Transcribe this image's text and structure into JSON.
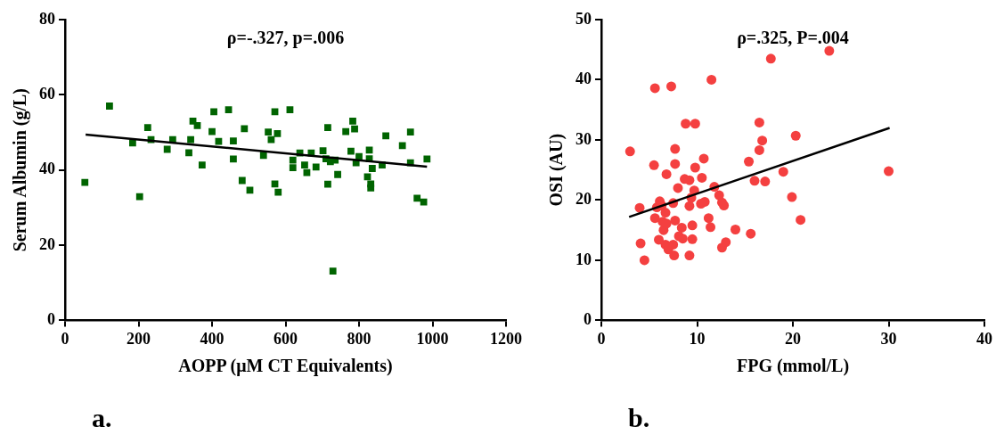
{
  "chart_data": [
    {
      "type": "scatter",
      "title": "ρ=-.327, p=.006",
      "xlabel": "AOPP (μM CT Equivalents)",
      "ylabel": "Serum Albumin (g/L)",
      "annotations": [
        "a."
      ],
      "xlim": [
        0,
        1200
      ],
      "xticks": [
        0,
        200,
        400,
        600,
        800,
        1000,
        1200
      ],
      "ylim": [
        0,
        80
      ],
      "yticks": [
        0,
        20,
        40,
        60,
        80
      ],
      "series": [
        {
          "color": "#006400",
          "marker": "square",
          "x": [
            54,
            121,
            184,
            203,
            225,
            234,
            278,
            293,
            337,
            342,
            348,
            360,
            373,
            400,
            405,
            418,
            445,
            458,
            458,
            482,
            488,
            503,
            540,
            553,
            561,
            571,
            578,
            571,
            580,
            612,
            620,
            620,
            639,
            652,
            658,
            670,
            683,
            702,
            715,
            715,
            710,
            729,
            722,
            735,
            742,
            764,
            778,
            783,
            788,
            792,
            800,
            828,
            828,
            823,
            832,
            832,
            836,
            863,
            873,
            918,
            940,
            940,
            958,
            976,
            985
          ],
          "values": [
            36.7,
            57,
            47.2,
            32.9,
            51.3,
            48.1,
            45.5,
            48.1,
            44.6,
            48.1,
            53,
            51.8,
            41.3,
            50.2,
            55.5,
            47.6,
            56,
            47.7,
            42.9,
            37.2,
            51,
            34.6,
            43.9,
            50.1,
            48.1,
            55.5,
            49.7,
            36.3,
            34.1,
            56,
            42.6,
            40.6,
            44.5,
            41.3,
            39.3,
            44.5,
            40.8,
            45.1,
            51.3,
            36.2,
            43,
            13.1,
            42.2,
            42.6,
            38.8,
            50.2,
            45,
            53,
            50.9,
            41.9,
            43.6,
            45.3,
            43,
            38.2,
            36.3,
            35.2,
            40.4,
            41.3,
            49.1,
            46.5,
            50.1,
            41.9,
            32.5,
            31.5,
            42.9
          ]
        },
        {
          "type": "line",
          "marker": "none",
          "color": "#000000",
          "x": [
            56,
            985
          ],
          "values": [
            49.4,
            40.9
          ]
        }
      ]
    },
    {
      "type": "scatter",
      "title": "ρ=.325, P=.004",
      "xlabel": "FPG (mmol/L)",
      "ylabel": "OSI (AU)",
      "annotations": [
        "b."
      ],
      "xlim": [
        0,
        40
      ],
      "xticks": [
        0,
        10,
        20,
        30,
        40
      ],
      "ylim": [
        0,
        50
      ],
      "yticks": [
        0,
        10,
        20,
        30,
        40,
        50
      ],
      "series": [
        {
          "color": "#f44040",
          "marker": "circle",
          "x": [
            3.0,
            4.0,
            4.1,
            4.5,
            5.5,
            5.6,
            5.6,
            5.8,
            6.0,
            6.1,
            6.3,
            6.4,
            6.5,
            6.7,
            6.7,
            6.8,
            6.8,
            7.0,
            7.3,
            7.5,
            7.5,
            7.6,
            7.7,
            7.7,
            7.7,
            8.0,
            8.1,
            8.4,
            8.5,
            8.7,
            8.8,
            9.2,
            9.2,
            9.2,
            9.4,
            9.5,
            9.5,
            9.7,
            9.8,
            9.8,
            10.4,
            10.5,
            10.7,
            10.8,
            11.2,
            11.4,
            11.5,
            11.8,
            12.3,
            12.6,
            12.8,
            12.6,
            13.0,
            14.0,
            15.4,
            15.6,
            16.0,
            16.5,
            16.5,
            16.8,
            17.1,
            17.7,
            19.0,
            19.9,
            20.3,
            20.8,
            23.8,
            30.0
          ],
          "values": [
            28.1,
            18.7,
            12.8,
            10.0,
            25.8,
            38.6,
            17.0,
            18.8,
            13.4,
            19.8,
            19.1,
            16.4,
            15.0,
            17.9,
            12.6,
            24.3,
            16.1,
            11.8,
            38.9,
            19.5,
            12.6,
            10.8,
            26.0,
            28.5,
            16.6,
            22.0,
            14.0,
            15.4,
            13.6,
            23.5,
            32.7,
            23.3,
            19.0,
            10.8,
            20.4,
            15.8,
            13.5,
            21.6,
            32.7,
            25.4,
            19.4,
            23.7,
            26.9,
            19.7,
            17.0,
            15.5,
            40.0,
            22.2,
            20.8,
            19.6,
            19.1,
            12.1,
            13.0,
            15.1,
            26.4,
            14.4,
            23.2,
            32.9,
            28.3,
            29.9,
            23.1,
            43.5,
            24.7,
            20.5,
            30.7,
            16.7,
            44.8,
            24.8
          ]
        },
        {
          "type": "line",
          "marker": "none",
          "color": "#000000",
          "x": [
            2.9,
            30.1
          ],
          "values": [
            17.2,
            32.0
          ]
        }
      ]
    }
  ]
}
